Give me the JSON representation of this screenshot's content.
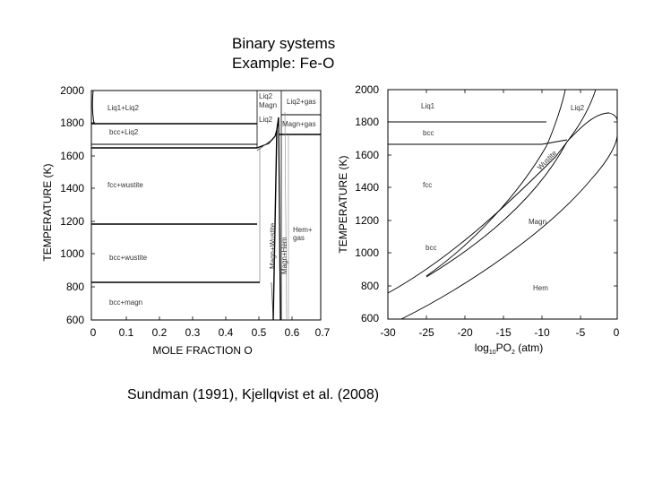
{
  "title": {
    "line1": "Binary systems",
    "line2": "Example: Fe-O"
  },
  "caption": "Sundman (1991), Kjellqvist et al. (2008)",
  "left_diagram": {
    "xlabel": "MOLE FRACTION O",
    "ylabel": "TEMPERATURE (K)",
    "x_ticks": [
      "0",
      "0.1",
      "0.2",
      "0.3",
      "0.4",
      "0.5",
      "0.6",
      "0.7"
    ],
    "y_ticks": [
      "600",
      "800",
      "1000",
      "1200",
      "1400",
      "1600",
      "1800",
      "2000"
    ],
    "regions": {
      "liq1_liq2": "Liq1+Liq2",
      "bcc_liq2": "bcc+Liq2",
      "fcc_wustite": "fcc+wustite",
      "bcc_wustite": "bcc+wustite",
      "bcc_magn": "bcc+magn",
      "liq2_magn_a": "Liq2",
      "liq2_magn_b": "Magn",
      "liq2_gas": "Liq2+gas",
      "liq2_small": "Liq2",
      "magn_gas": "Magn+gas",
      "hem_gas_a": "Hem+",
      "hem_gas_b": "gas",
      "magn_wustite": "Magn+Wustite",
      "magn_hem": "Magn+Hem"
    }
  },
  "right_diagram": {
    "xlabel_prefix": "log",
    "xlabel_sub": "10",
    "xlabel_suffix": "PO",
    "xlabel_sub2": "2",
    "xlabel_unit": " (atm)",
    "ylabel": "TEMPERATURE (K)",
    "x_ticks": [
      "-30",
      "-25",
      "-20",
      "-15",
      "-10",
      "-5",
      "0"
    ],
    "y_ticks": [
      "600",
      "800",
      "1000",
      "1200",
      "1400",
      "1600",
      "1800",
      "2000"
    ],
    "regions": {
      "liq1": "Liq1",
      "liq2": "Liq2",
      "bcc_top": "bcc",
      "fcc": "fcc",
      "wustite": "Wustite",
      "magn": "Magn",
      "bcc_low": "bcc",
      "hem": "Hem"
    }
  }
}
